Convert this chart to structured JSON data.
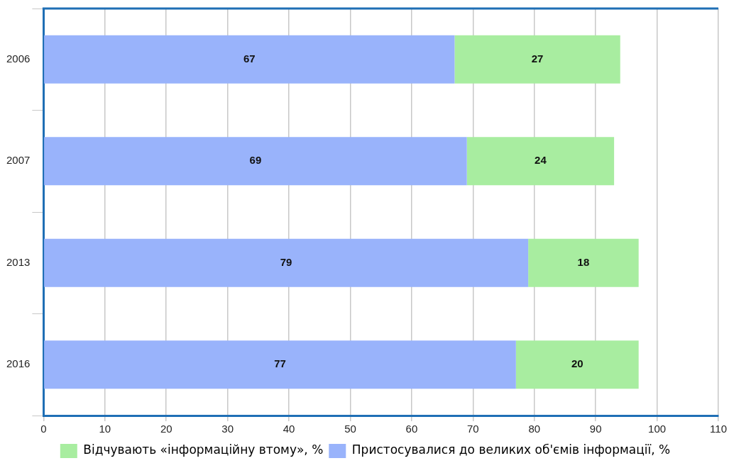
{
  "chart_data": {
    "type": "bar",
    "orientation": "horizontal",
    "stacked": true,
    "categories": [
      "2006",
      "2007",
      "2013",
      "2016"
    ],
    "series": [
      {
        "name": "Пристосувалися до великих об'ємів інформації, %",
        "color": "#99b3fb",
        "values": [
          67,
          69,
          79,
          77
        ]
      },
      {
        "name": "Відчувають «інформаційну втому», %",
        "color": "#a8eda0",
        "values": [
          27,
          24,
          18,
          20
        ]
      }
    ],
    "xlim": [
      0,
      110
    ],
    "xticks": [
      0,
      10,
      20,
      30,
      40,
      50,
      60,
      70,
      80,
      90,
      100,
      110
    ],
    "grid": "x",
    "legend": "bottom",
    "data_labels": true
  }
}
